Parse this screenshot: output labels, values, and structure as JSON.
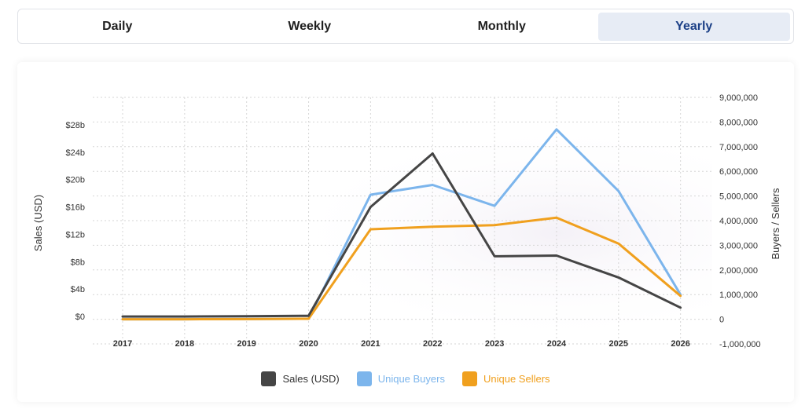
{
  "tabs": [
    {
      "label": "Daily",
      "active": false
    },
    {
      "label": "Weekly",
      "active": false
    },
    {
      "label": "Monthly",
      "active": false
    },
    {
      "label": "Yearly",
      "active": true
    }
  ],
  "chart_data": {
    "type": "line",
    "x": [
      "2017",
      "2018",
      "2019",
      "2020",
      "2021",
      "2022",
      "2023",
      "2024",
      "2025",
      "2026"
    ],
    "ylabel_left": "Sales (USD)",
    "ylabel_right": "Buyers / Sellers",
    "ylim_left": [
      -4,
      32
    ],
    "ylim_right": [
      -1000000,
      9000000
    ],
    "left_ticks": [
      0,
      4,
      8,
      12,
      16,
      20,
      24,
      28
    ],
    "left_tick_labels": [
      "$0",
      "$4b",
      "$8b",
      "$12b",
      "$16b",
      "$20b",
      "$24b",
      "$28b"
    ],
    "right_ticks": [
      -1000000,
      0,
      1000000,
      2000000,
      3000000,
      4000000,
      5000000,
      6000000,
      7000000,
      8000000,
      9000000
    ],
    "right_tick_labels": [
      "-1,000,000",
      "0",
      "1,000,000",
      "2,000,000",
      "3,000,000",
      "4,000,000",
      "5,000,000",
      "6,000,000",
      "7,000,000",
      "8,000,000",
      "9,000,000"
    ],
    "grid": true,
    "legend_position": "bottom",
    "series": [
      {
        "name": "Sales (USD)",
        "axis": "left",
        "color": "#454545",
        "values": [
          0,
          0,
          0.05,
          0.1,
          16,
          23.8,
          8.8,
          8.9,
          5.7,
          1.3
        ]
      },
      {
        "name": "Unique Buyers",
        "axis": "right",
        "color": "#7cb5ec",
        "values": [
          0,
          0,
          5000,
          20000,
          5050000,
          5450000,
          4600000,
          7700000,
          5200000,
          1000000
        ]
      },
      {
        "name": "Unique Sellers",
        "axis": "right",
        "color": "#f0a01e",
        "values": [
          0,
          0,
          5000,
          20000,
          3650000,
          3750000,
          3820000,
          4120000,
          3070000,
          950000
        ]
      }
    ]
  }
}
